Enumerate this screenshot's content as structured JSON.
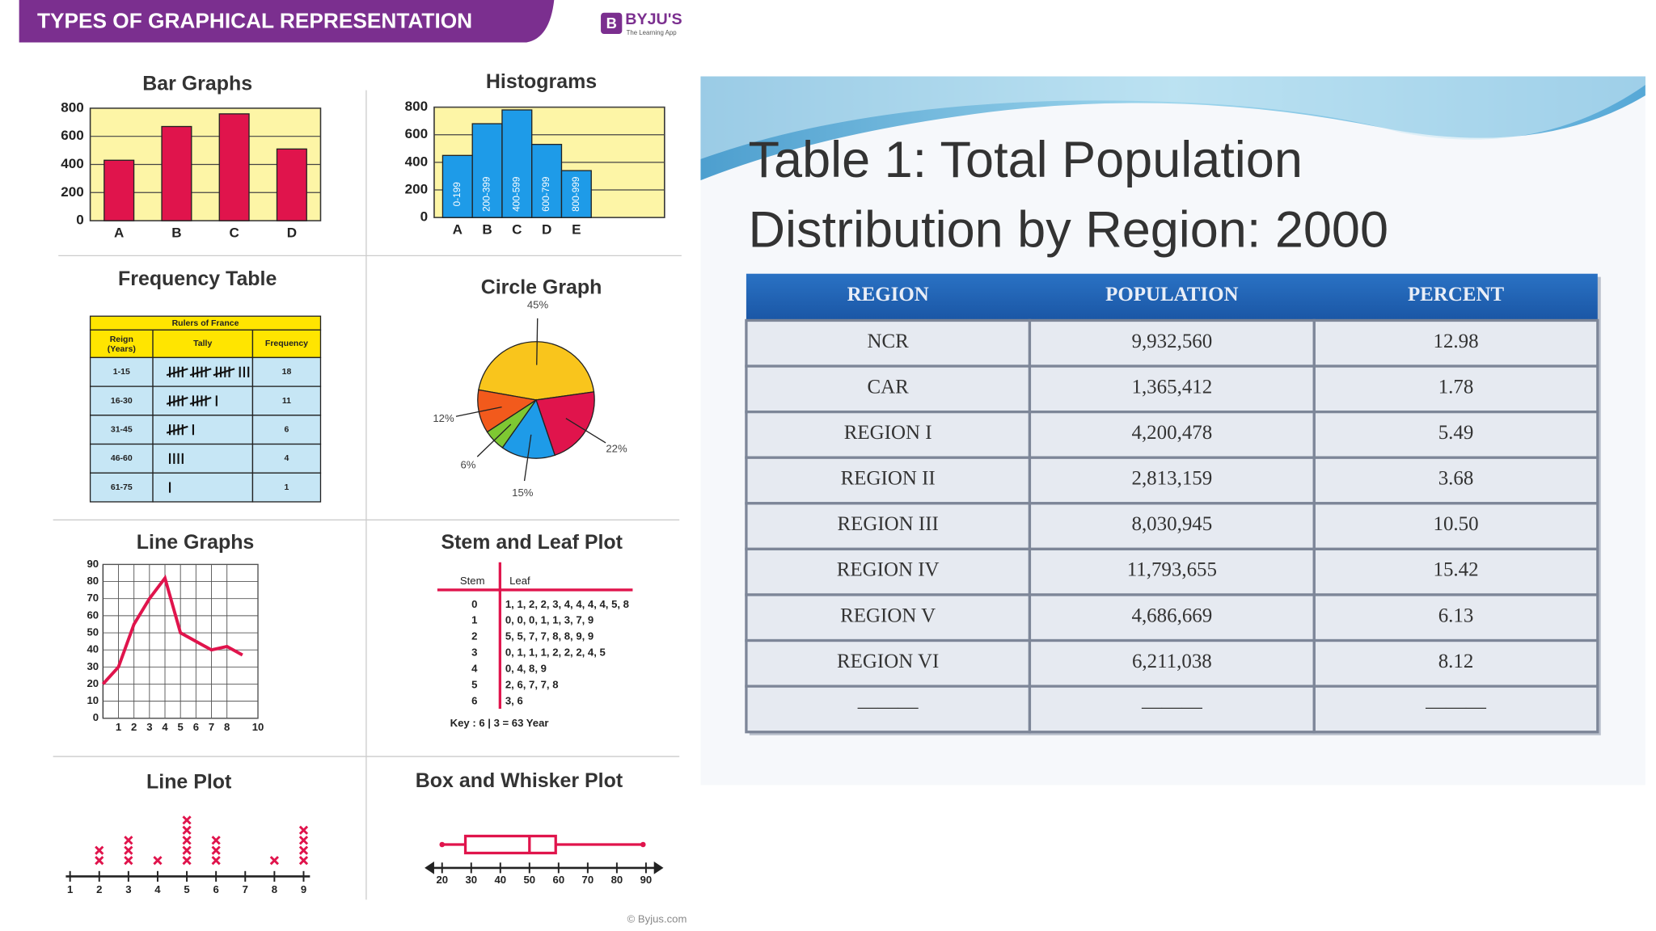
{
  "header": {
    "title": "TYPES OF GRAPHICAL REPRESENTATION",
    "brand": "BYJU'S",
    "brand_tagline": "The Learning App",
    "credit": "© Byjus.com"
  },
  "chart_data": [
    {
      "type": "bar",
      "title": "Bar Graphs",
      "categories": [
        "A",
        "B",
        "C",
        "D"
      ],
      "values": [
        430,
        670,
        760,
        510
      ],
      "color": "#e0144c",
      "ylim": [
        0,
        800
      ],
      "yticks": [
        0,
        200,
        400,
        600,
        800
      ],
      "grid": true
    },
    {
      "type": "histogram",
      "title": "Histograms",
      "categories": [
        "A",
        "B",
        "C",
        "D",
        "E"
      ],
      "bar_labels": [
        "0-199",
        "200-399",
        "400-599",
        "600-799",
        "800-999"
      ],
      "values": [
        450,
        680,
        780,
        530,
        340
      ],
      "color": "#1e9be8",
      "ylim": [
        0,
        800
      ],
      "yticks": [
        0,
        200,
        400,
        600,
        800
      ],
      "grid": true
    },
    {
      "type": "pie",
      "title": "Circle Graph",
      "values": [
        45,
        22,
        15,
        6,
        12
      ],
      "value_labels": [
        "45%",
        "22%",
        "15%",
        "6%",
        "12%"
      ],
      "colors": [
        "#f9c51c",
        "#e0144c",
        "#1e9be8",
        "#7ec832",
        "#f25a1c"
      ]
    },
    {
      "type": "line",
      "title": "Line Graphs",
      "x": [
        0,
        1,
        2,
        3,
        4,
        5,
        6,
        7,
        8,
        9
      ],
      "values": [
        20,
        30,
        55,
        70,
        82,
        50,
        45,
        40,
        42,
        37
      ],
      "color": "#e0144c",
      "xlim": [
        0,
        10
      ],
      "xticks": [
        1,
        2,
        3,
        4,
        5,
        6,
        7,
        8,
        10
      ],
      "ylim": [
        0,
        90
      ],
      "yticks": [
        0,
        10,
        20,
        30,
        40,
        50,
        60,
        70,
        80,
        90
      ],
      "grid": true
    },
    {
      "type": "lineplot",
      "title": "Line Plot",
      "categories": [
        "1",
        "2",
        "3",
        "4",
        "5",
        "6",
        "7",
        "8",
        "9"
      ],
      "values": [
        0,
        2,
        3,
        1,
        5,
        3,
        0,
        1,
        4
      ],
      "color": "#e0144c"
    },
    {
      "type": "box",
      "title": "Box and Whisker Plot",
      "min": 20,
      "q1": 28,
      "median": 50,
      "q3": 59,
      "max": 89,
      "color": "#e0144c",
      "xlim": [
        14,
        96
      ],
      "xticks": [
        20,
        30,
        40,
        50,
        60,
        70,
        80,
        90
      ]
    }
  ],
  "frequency_table": {
    "title": "Frequency Table",
    "caption": "Rulers of France",
    "headers": [
      "Reign (Years)",
      "Tally",
      "Frequency"
    ],
    "rows": [
      [
        "1-15",
        18
      ],
      [
        "16-30",
        11
      ],
      [
        "31-45",
        6
      ],
      [
        "46-60",
        4
      ],
      [
        "61-75",
        1
      ]
    ]
  },
  "stem_leaf": {
    "title": "Stem and Leaf Plot",
    "headers": [
      "Stem",
      "Leaf"
    ],
    "rows": [
      [
        "0",
        "1, 1, 2, 2, 3, 4, 4, 4, 4, 5, 8"
      ],
      [
        "1",
        "0, 0, 0, 1, 1, 3, 7, 9"
      ],
      [
        "2",
        "5, 5, 7, 7, 8, 8, 9, 9"
      ],
      [
        "3",
        "0, 1, 1, 1, 2, 2, 2, 4, 5"
      ],
      [
        "4",
        "0, 4, 8, 9"
      ],
      [
        "5",
        "2, 6, 7, 7, 8"
      ],
      [
        "6",
        "3, 6"
      ]
    ],
    "key": "Key : 6 | 3 = 63 Year"
  },
  "population_table": {
    "title_lines": [
      "Table 1: Total Population",
      "Distribution by Region: 2000"
    ],
    "headers": [
      "REGION",
      "POPULATION",
      "PERCENT"
    ],
    "rows": [
      [
        "NCR",
        "9,932,560",
        "12.98"
      ],
      [
        "CAR",
        "1,365,412",
        "1.78"
      ],
      [
        "REGION I",
        "4,200,478",
        "5.49"
      ],
      [
        "REGION II",
        "2,813,159",
        "3.68"
      ],
      [
        "REGION III",
        "8,030,945",
        "10.50"
      ],
      [
        "REGION IV",
        "11,793,655",
        "15.42"
      ],
      [
        "REGION V",
        "4,686,669",
        "6.13"
      ],
      [
        "REGION VI",
        "6,211,038",
        "8.12"
      ],
      [
        "———",
        "———",
        "———"
      ]
    ]
  }
}
